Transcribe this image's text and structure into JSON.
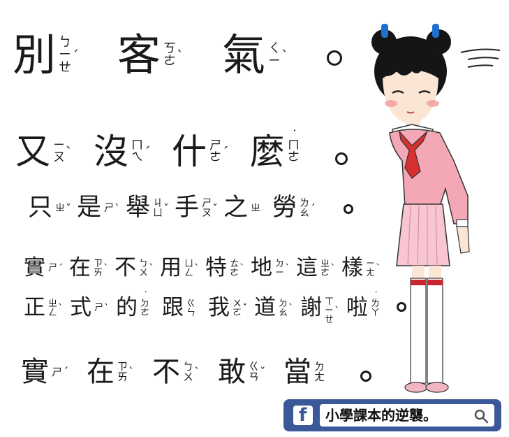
{
  "lines": [
    {
      "id": "line-1",
      "text": "別客氣。",
      "chars": [
        {
          "char": "別",
          "zhuyin": [
            "ㄅ",
            "ㄧ",
            "ㄝ"
          ],
          "tone": "ˊ"
        },
        {
          "char": "客",
          "zhuyin": [
            "ㄎ",
            "ㄜ"
          ],
          "tone": "ˋ"
        },
        {
          "char": "氣",
          "zhuyin": [
            "ㄑ",
            "ㄧ"
          ],
          "tone": "ˋ"
        }
      ],
      "punct": "。"
    },
    {
      "id": "line-2",
      "text": "又沒什麼。",
      "chars": [
        {
          "char": "又",
          "zhuyin": [
            "ㄧ",
            "ㄡ"
          ],
          "tone": "ˋ"
        },
        {
          "char": "沒",
          "zhuyin": [
            "ㄇ",
            "ㄟ"
          ],
          "tone": "ˊ"
        },
        {
          "char": "什",
          "zhuyin": [
            "ㄕ",
            "ㄜ"
          ],
          "tone": "ˊ"
        },
        {
          "char": "麼",
          "zhuyin": [
            "ㄇ",
            "ㄜ"
          ],
          "tone": "˙"
        }
      ],
      "punct": "。"
    },
    {
      "id": "line-3",
      "text": "只是舉手之勞。",
      "chars": [
        {
          "char": "只",
          "zhuyin": [
            "ㄓ"
          ],
          "tone": "ˇ"
        },
        {
          "char": "是",
          "zhuyin": [
            "ㄕ"
          ],
          "tone": "ˋ"
        },
        {
          "char": "舉",
          "zhuyin": [
            "ㄐ",
            "ㄩ"
          ],
          "tone": "ˇ"
        },
        {
          "char": "手",
          "zhuyin": [
            "ㄕ",
            "ㄡ"
          ],
          "tone": "ˇ"
        },
        {
          "char": "之",
          "zhuyin": [
            "ㄓ"
          ],
          "tone": ""
        },
        {
          "char": "勞",
          "zhuyin": [
            "ㄌ",
            "ㄠ"
          ],
          "tone": "ˊ"
        }
      ],
      "punct": "。"
    },
    {
      "id": "line-4",
      "text": "實在不用特地這樣",
      "chars": [
        {
          "char": "實",
          "zhuyin": [
            "ㄕ"
          ],
          "tone": "ˊ"
        },
        {
          "char": "在",
          "zhuyin": [
            "ㄗ",
            "ㄞ"
          ],
          "tone": "ˋ"
        },
        {
          "char": "不",
          "zhuyin": [
            "ㄅ",
            "ㄨ"
          ],
          "tone": "ˋ"
        },
        {
          "char": "用",
          "zhuyin": [
            "ㄩ",
            "ㄥ"
          ],
          "tone": "ˋ"
        },
        {
          "char": "特",
          "zhuyin": [
            "ㄊ",
            "ㄜ"
          ],
          "tone": "ˋ"
        },
        {
          "char": "地",
          "zhuyin": [
            "ㄉ",
            "ㄧ"
          ],
          "tone": "ˋ"
        },
        {
          "char": "這",
          "zhuyin": [
            "ㄓ",
            "ㄜ"
          ],
          "tone": "ˋ"
        },
        {
          "char": "樣",
          "zhuyin": [
            "ㄧ",
            "ㄤ"
          ],
          "tone": "ˋ"
        }
      ],
      "punct": ""
    },
    {
      "id": "line-5",
      "text": "正式的跟我道謝啦。",
      "chars": [
        {
          "char": "正",
          "zhuyin": [
            "ㄓ",
            "ㄥ"
          ],
          "tone": "ˋ"
        },
        {
          "char": "式",
          "zhuyin": [
            "ㄕ"
          ],
          "tone": "ˋ"
        },
        {
          "char": "的",
          "zhuyin": [
            "ㄉ",
            "ㄜ"
          ],
          "tone": "˙"
        },
        {
          "char": "跟",
          "zhuyin": [
            "ㄍ",
            "ㄣ"
          ],
          "tone": ""
        },
        {
          "char": "我",
          "zhuyin": [
            "ㄨ",
            "ㄛ"
          ],
          "tone": "ˇ"
        },
        {
          "char": "道",
          "zhuyin": [
            "ㄉ",
            "ㄠ"
          ],
          "tone": "ˋ"
        },
        {
          "char": "謝",
          "zhuyin": [
            "ㄒ",
            "ㄧ",
            "ㄝ"
          ],
          "tone": "ˋ"
        },
        {
          "char": "啦",
          "zhuyin": [
            "ㄌ",
            "ㄚ"
          ],
          "tone": "˙"
        }
      ],
      "punct": "。"
    },
    {
      "id": "line-6",
      "text": "實在不敢當。",
      "chars": [
        {
          "char": "實",
          "zhuyin": [
            "ㄕ"
          ],
          "tone": "ˊ"
        },
        {
          "char": "在",
          "zhuyin": [
            "ㄗ",
            "ㄞ"
          ],
          "tone": "ˋ"
        },
        {
          "char": "不",
          "zhuyin": [
            "ㄅ",
            "ㄨ"
          ],
          "tone": "ˋ"
        },
        {
          "char": "敢",
          "zhuyin": [
            "ㄍ",
            "ㄢ"
          ],
          "tone": "ˇ"
        },
        {
          "char": "當",
          "zhuyin": [
            "ㄉ",
            "ㄤ"
          ],
          "tone": ""
        }
      ],
      "punct": "。"
    }
  ],
  "searchbar": {
    "icon": "facebook-icon",
    "query": "小學課本的逆襲。",
    "search_icon": "search-icon",
    "bar_color": "#3b5998"
  },
  "illustration": {
    "subject": "girl-bowing-icon",
    "colors": {
      "sweater": "#f4a7b4",
      "skirt": "#f7c6d0",
      "scarf": "#d82f2f",
      "hair_ribbons": "#1f6fd1",
      "socks_stripe": "#c9272d"
    }
  }
}
